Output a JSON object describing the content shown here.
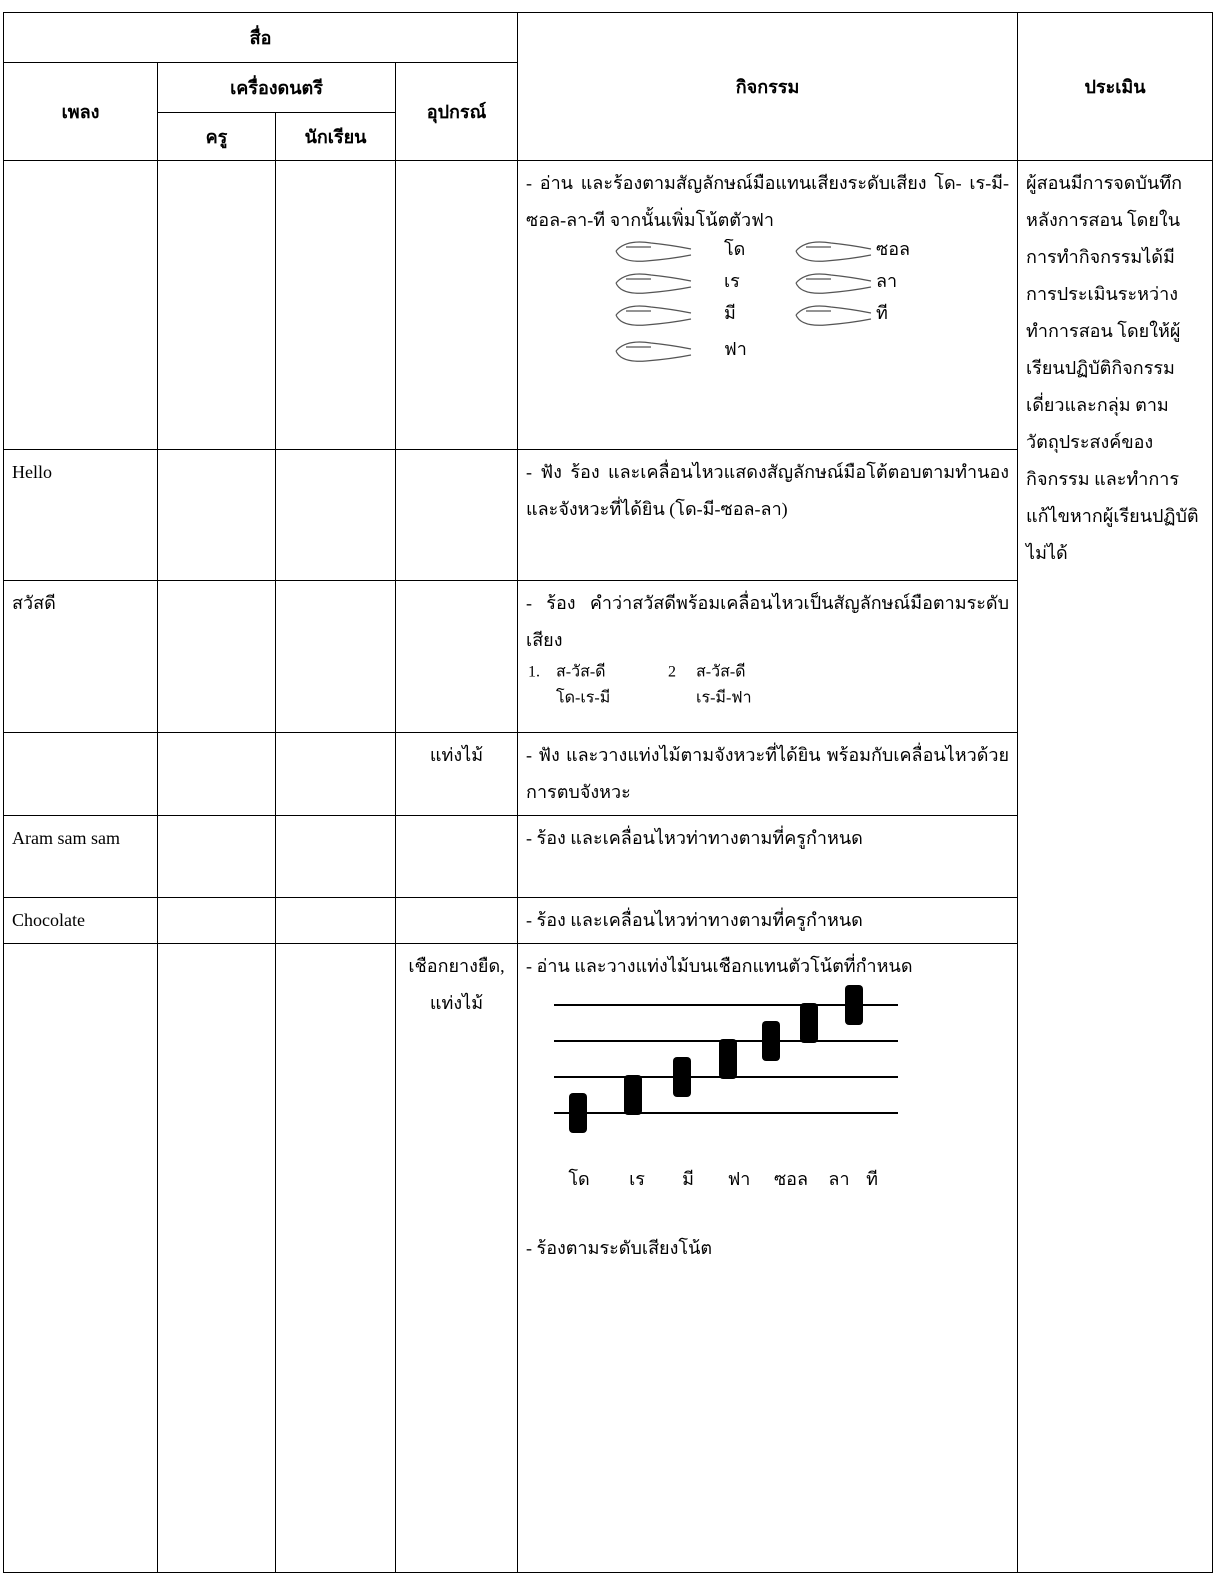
{
  "table": {
    "header": {
      "media": "สื่อ",
      "song": "เพลง",
      "instruments": "เครื่องดนตรี",
      "teacher": "ครู",
      "student": "นักเรียน",
      "equipment": "อุปกรณ์",
      "activity": "กิจกรรม",
      "evaluation": "ประเมิน"
    },
    "rows": [
      {
        "activity": "- อ่าน และร้องตามสัญลักษณ์มือแทนเสียงระดับเสียง  โด- เร-มี-ซอล-ลา-ที จากนั้นเพิ่มโน้ตตัวฟา",
        "hand_signs": [
          "โด",
          "เร",
          "มี",
          "ฟา",
          "ซอล",
          "ลา",
          "ที"
        ]
      },
      {
        "song": "Hello",
        "activity": "- ฟัง ร้อง และเคลื่อนไหวแสดงสัญลักษณ์มือโต้ตอบตามทำนองและจังหวะที่ได้ยิน (โด-มี-ซอล-ลา)"
      },
      {
        "song": "สวัสดี",
        "activity": "- ร้อง คำว่าสวัสดีพร้อมเคลื่อนไหวเป็นสัญลักษณ์มือตามระดับเสียง",
        "sing_items": [
          {
            "number": "1.",
            "syllables": "ส-วัส-ดี",
            "notes": "โด-เร-มี"
          },
          {
            "number": "2",
            "syllables": "ส-วัส-ดี",
            "notes": "เร-มี-ฟา"
          }
        ]
      },
      {
        "equipment": "แท่งไม้",
        "activity": "- ฟัง และวางแท่งไม้ตามจังหวะที่ได้ยิน พร้อมกับเคลื่อนไหวด้วยการตบจังหวะ"
      },
      {
        "song": "Aram sam sam",
        "activity": "- ร้อง และเคลื่อนไหวท่าทางตามที่ครูกำหนด"
      },
      {
        "song": "Chocolate",
        "activity": "- ร้อง และเคลื่อนไหวท่าทางตามที่ครูกำหนด"
      },
      {
        "equipment": "เชือกยางยืด, แท่งไม้",
        "activity": "- อ่าน และวางแท่งไม้บนเชือกแทนตัวโน้ตที่กำหนด",
        "staff_notes": [
          "โด",
          "เร",
          "มี",
          "ฟา",
          "ซอล",
          "ลา",
          "ที"
        ],
        "activity_end": "- ร้องตามระดับเสียงโน้ต"
      }
    ],
    "evaluation": "ผู้สอนมีการจดบันทึกหลังการสอน โดยในการทำกิจกรรมได้มีการประเมินระหว่างทำการสอน โดยให้ผู้เรียนปฏิบัติกิจกรรมเดี่ยวและกลุ่ม ตามวัตถุประสงค์ของกิจกรรม และทำการแก้ไขหากผู้เรียนปฏิบัติไม่ได้"
  }
}
